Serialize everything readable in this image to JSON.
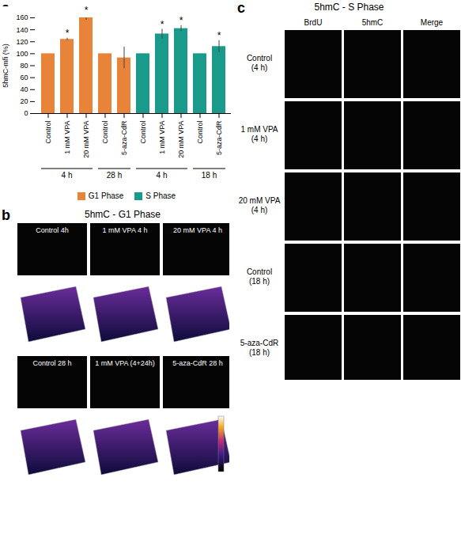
{
  "chart_data": {
    "type": "bar",
    "panel_label": "a",
    "ylabel": "5hmC-mfi (%)",
    "categories": [
      "Control",
      "1 mM VPA",
      "20 mM VPA",
      "Control",
      "5-aza-CdR",
      "Control",
      "1 mM VPA",
      "20 mM VPA",
      "Control",
      "5-aza-CdR"
    ],
    "groups": [
      {
        "label": "4 h",
        "from": 0,
        "to": 2
      },
      {
        "label": "28 h",
        "from": 3,
        "to": 4
      },
      {
        "label": "4 h",
        "from": 5,
        "to": 7
      },
      {
        "label": "18 h",
        "from": 8,
        "to": 9
      }
    ],
    "series": [
      {
        "name": "G1 Phase",
        "color": "#e8833a",
        "values": [
          100,
          124,
          160,
          100,
          93,
          null,
          null,
          null,
          null,
          null
        ],
        "errors": [
          0,
          2,
          4,
          0,
          18,
          null,
          null,
          null,
          null,
          null
        ],
        "significance": [
          null,
          "*",
          "*",
          null,
          null,
          null,
          null,
          null,
          null,
          null
        ]
      },
      {
        "name": "S Phase",
        "color": "#1a9a8a",
        "values": [
          null,
          null,
          null,
          null,
          null,
          100,
          133,
          142,
          100,
          112
        ],
        "errors": [
          null,
          null,
          null,
          null,
          null,
          0,
          8,
          5,
          0,
          10
        ],
        "significance": [
          null,
          null,
          null,
          null,
          null,
          null,
          "*",
          "*",
          null,
          "*"
        ]
      }
    ],
    "ylim": [
      0,
      160
    ],
    "yticks": [
      0,
      20,
      40,
      60,
      80,
      100,
      120,
      140,
      160
    ],
    "grid": false,
    "legend": "bottom"
  },
  "panels": {
    "b": {
      "label": "b",
      "title": "5hmC - G1 Phase",
      "top_images": [
        "Control 4h",
        "1 mM VPA 4 h",
        "20 mM VPA 4 h"
      ],
      "bottom_images": [
        "Control 28 h",
        "1 mM VPA (4+24h)",
        "5-aza-CdR  28 h"
      ]
    },
    "c": {
      "label": "c",
      "title": "5hmC - S Phase",
      "columns": [
        "BrdU",
        "5hmC",
        "Merge"
      ],
      "rows": [
        [
          "Control",
          "(4 h)"
        ],
        [
          "1 mM VPA",
          "(4 h)"
        ],
        [
          "20 mM VPA",
          "(4 h)"
        ],
        [
          "Control",
          "(18 h)"
        ],
        [
          "5-aza-CdR",
          "(18 h)"
        ]
      ]
    }
  }
}
